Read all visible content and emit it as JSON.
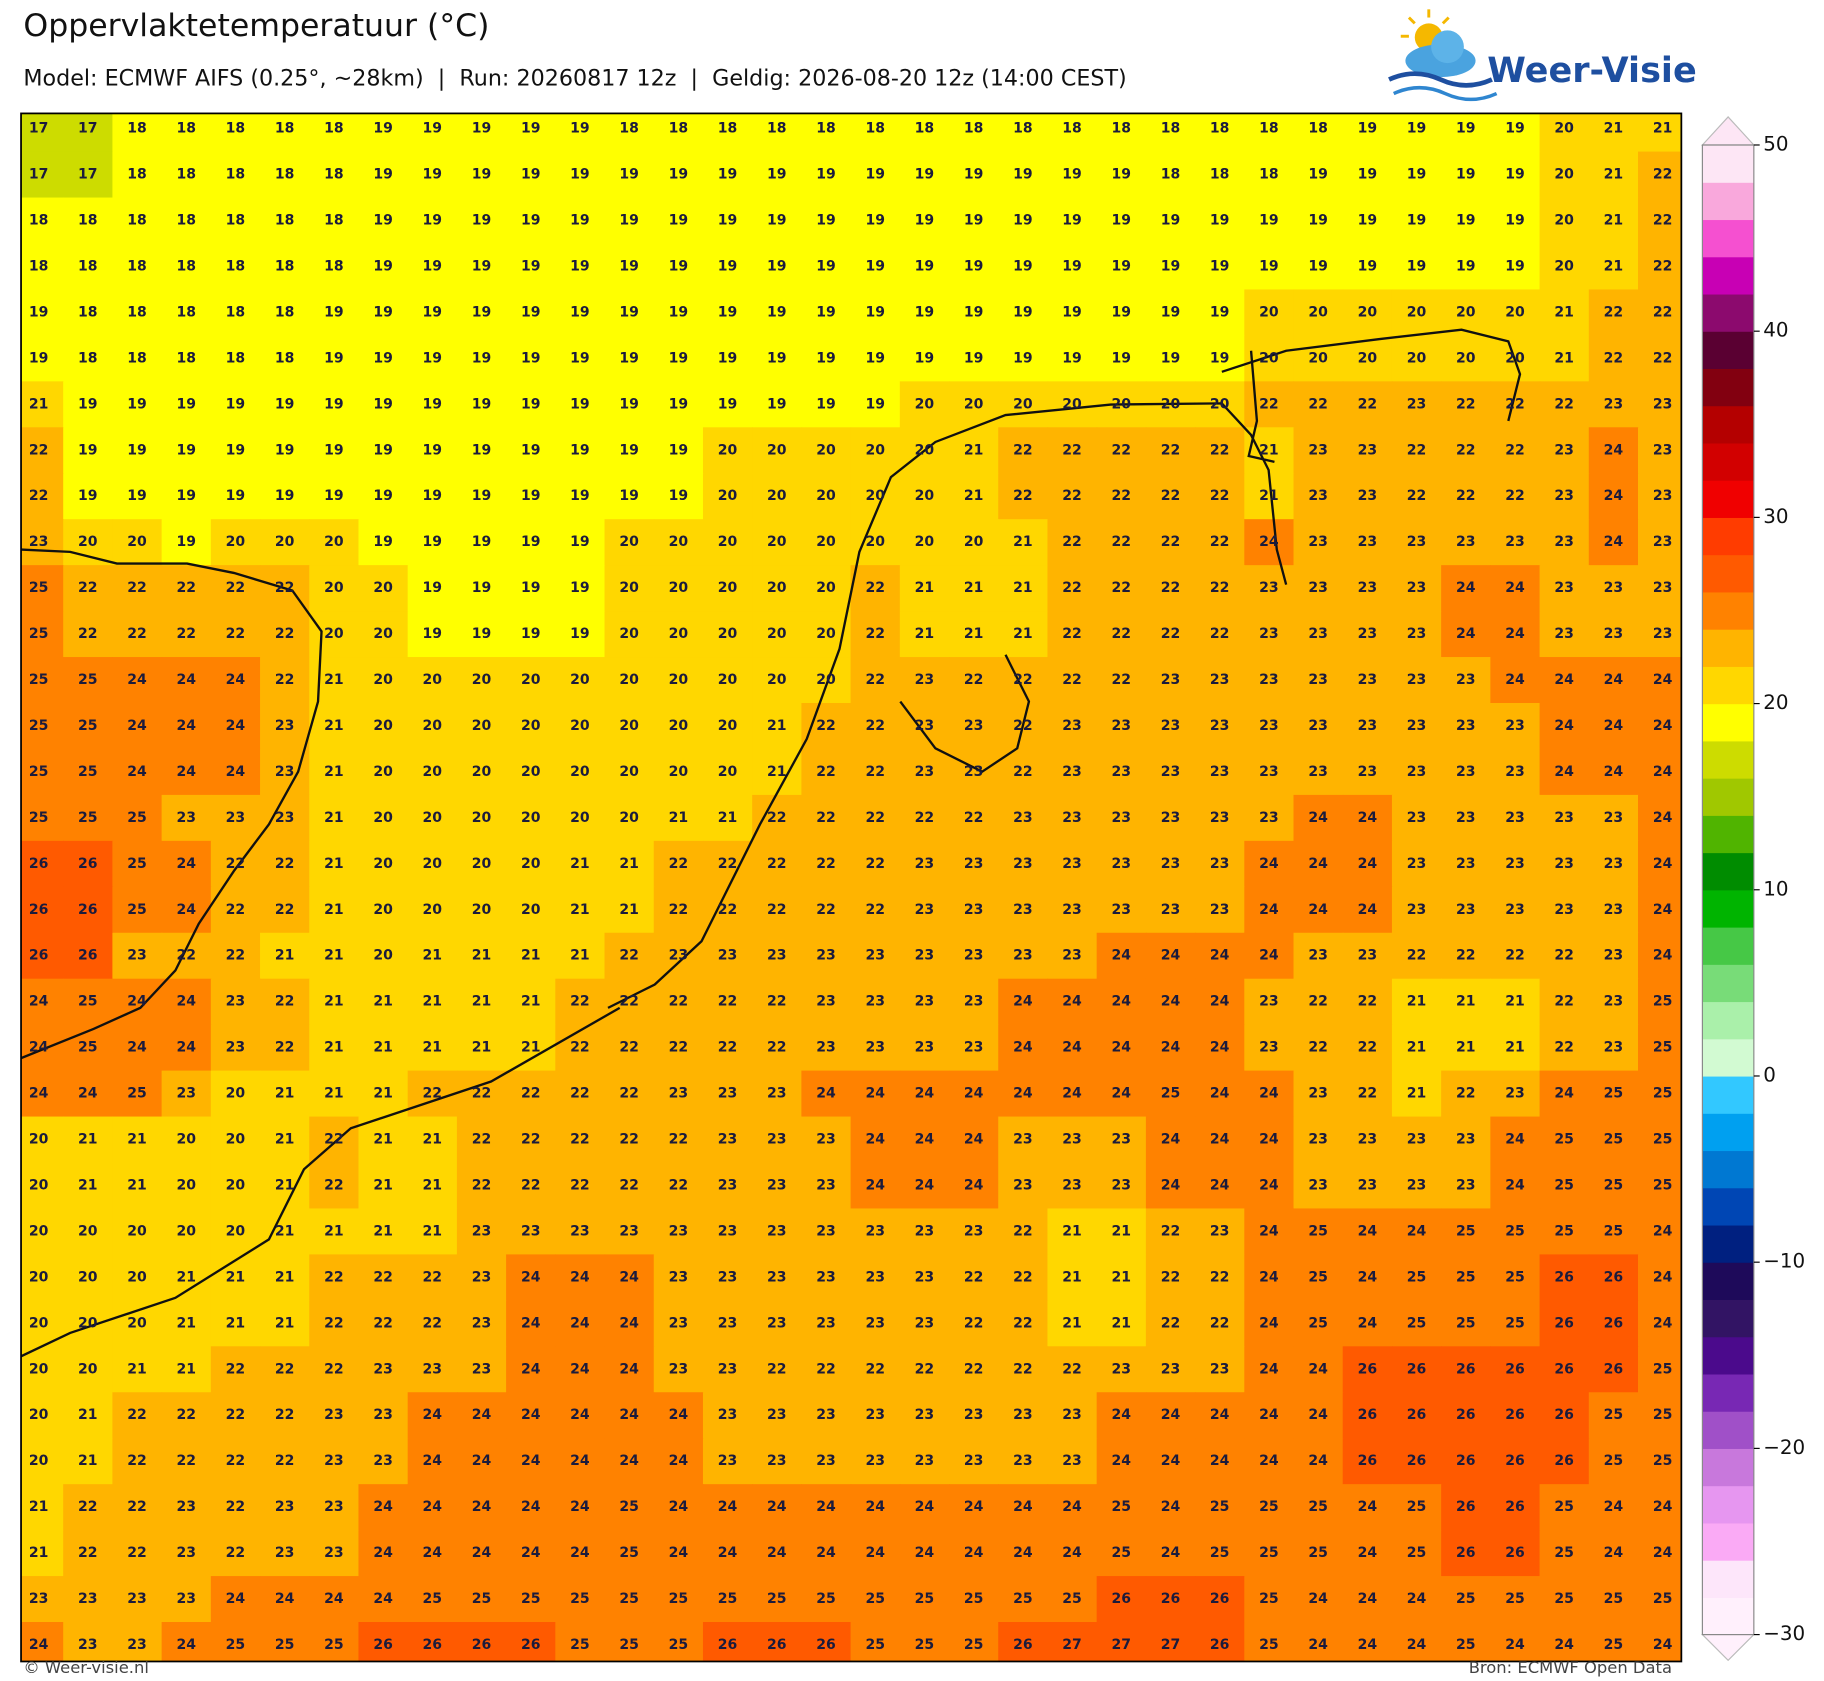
{
  "header": {
    "title": "Oppervlaktetemperatuur (°C)",
    "subtitle": "Model: ECMWF AIFS (0.25°, ~28km)  |  Run: 20260817 12z  |  Geldig: 2026-08-20 12z (14:00 CEST)"
  },
  "logo": "Weer-Visie",
  "grid": {
    "rows": [
      [
        17,
        17,
        18,
        18,
        18,
        18,
        18,
        19,
        19,
        19,
        19,
        19,
        18,
        18,
        18,
        18,
        18,
        18,
        18,
        18,
        18,
        18,
        18,
        18,
        18,
        18,
        18,
        19,
        19,
        19,
        19,
        20,
        21,
        21
      ],
      [
        17,
        17,
        18,
        18,
        18,
        18,
        18,
        19,
        19,
        19,
        19,
        19,
        19,
        19,
        19,
        19,
        19,
        19,
        19,
        19,
        19,
        19,
        19,
        18,
        18,
        18,
        19,
        19,
        19,
        19,
        19,
        20,
        21,
        22
      ],
      [
        18,
        18,
        18,
        18,
        18,
        18,
        18,
        19,
        19,
        19,
        19,
        19,
        19,
        19,
        19,
        19,
        19,
        19,
        19,
        19,
        19,
        19,
        19,
        19,
        19,
        19,
        19,
        19,
        19,
        19,
        19,
        20,
        21,
        22
      ],
      [
        18,
        18,
        18,
        18,
        18,
        18,
        18,
        19,
        19,
        19,
        19,
        19,
        19,
        19,
        19,
        19,
        19,
        19,
        19,
        19,
        19,
        19,
        19,
        19,
        19,
        19,
        19,
        19,
        19,
        19,
        19,
        20,
        21,
        22
      ],
      [
        19,
        18,
        18,
        18,
        18,
        18,
        19,
        19,
        19,
        19,
        19,
        19,
        19,
        19,
        19,
        19,
        19,
        19,
        19,
        19,
        19,
        19,
        19,
        19,
        19,
        20,
        20,
        20,
        20,
        20,
        20,
        21,
        22,
        22
      ],
      [
        19,
        18,
        18,
        18,
        18,
        18,
        19,
        19,
        19,
        19,
        19,
        19,
        19,
        19,
        19,
        19,
        19,
        19,
        19,
        19,
        19,
        19,
        19,
        19,
        19,
        20,
        20,
        20,
        20,
        20,
        20,
        21,
        22,
        22
      ],
      [
        21,
        19,
        19,
        19,
        19,
        19,
        19,
        19,
        19,
        19,
        19,
        19,
        19,
        19,
        19,
        19,
        19,
        19,
        20,
        20,
        20,
        20,
        20,
        20,
        20,
        22,
        22,
        22,
        23,
        22,
        22,
        22,
        23,
        23
      ],
      [
        22,
        19,
        19,
        19,
        19,
        19,
        19,
        19,
        19,
        19,
        19,
        19,
        19,
        19,
        20,
        20,
        20,
        20,
        20,
        21,
        22,
        22,
        22,
        22,
        22,
        21,
        23,
        23,
        22,
        22,
        22,
        23,
        24,
        23
      ],
      [
        22,
        19,
        19,
        19,
        19,
        19,
        19,
        19,
        19,
        19,
        19,
        19,
        19,
        19,
        20,
        20,
        20,
        20,
        20,
        21,
        22,
        22,
        22,
        22,
        22,
        21,
        23,
        23,
        22,
        22,
        22,
        23,
        24,
        23
      ],
      [
        23,
        20,
        20,
        19,
        20,
        20,
        20,
        19,
        19,
        19,
        19,
        19,
        20,
        20,
        20,
        20,
        20,
        20,
        20,
        20,
        21,
        22,
        22,
        22,
        22,
        24,
        23,
        23,
        23,
        23,
        23,
        23,
        24,
        23
      ],
      [
        25,
        22,
        22,
        22,
        22,
        22,
        20,
        20,
        19,
        19,
        19,
        19,
        20,
        20,
        20,
        20,
        20,
        22,
        21,
        21,
        21,
        22,
        22,
        22,
        22,
        23,
        23,
        23,
        23,
        24,
        24,
        23,
        23,
        23
      ],
      [
        25,
        22,
        22,
        22,
        22,
        22,
        20,
        20,
        19,
        19,
        19,
        19,
        20,
        20,
        20,
        20,
        20,
        22,
        21,
        21,
        21,
        22,
        22,
        22,
        22,
        23,
        23,
        23,
        23,
        24,
        24,
        23,
        23,
        23
      ],
      [
        25,
        25,
        24,
        24,
        24,
        22,
        21,
        20,
        20,
        20,
        20,
        20,
        20,
        20,
        20,
        20,
        20,
        22,
        23,
        22,
        22,
        22,
        22,
        23,
        23,
        23,
        23,
        23,
        23,
        23,
        24,
        24,
        24,
        24
      ],
      [
        25,
        25,
        24,
        24,
        24,
        23,
        21,
        20,
        20,
        20,
        20,
        20,
        20,
        20,
        20,
        21,
        22,
        22,
        23,
        23,
        22,
        23,
        23,
        23,
        23,
        23,
        23,
        23,
        23,
        23,
        23,
        24,
        24,
        24
      ],
      [
        25,
        25,
        24,
        24,
        24,
        23,
        21,
        20,
        20,
        20,
        20,
        20,
        20,
        20,
        20,
        21,
        22,
        22,
        23,
        23,
        22,
        23,
        23,
        23,
        23,
        23,
        23,
        23,
        23,
        23,
        23,
        24,
        24,
        24
      ],
      [
        25,
        25,
        25,
        23,
        23,
        23,
        21,
        20,
        20,
        20,
        20,
        20,
        20,
        21,
        21,
        22,
        22,
        22,
        22,
        22,
        23,
        23,
        23,
        23,
        23,
        23,
        24,
        24,
        23,
        23,
        23,
        23,
        23,
        24
      ],
      [
        26,
        26,
        25,
        24,
        22,
        22,
        21,
        20,
        20,
        20,
        20,
        21,
        21,
        22,
        22,
        22,
        22,
        22,
        23,
        23,
        23,
        23,
        23,
        23,
        23,
        24,
        24,
        24,
        23,
        23,
        23,
        23,
        23,
        24
      ],
      [
        26,
        26,
        25,
        24,
        22,
        22,
        21,
        20,
        20,
        20,
        20,
        21,
        21,
        22,
        22,
        22,
        22,
        22,
        23,
        23,
        23,
        23,
        23,
        23,
        23,
        24,
        24,
        24,
        23,
        23,
        23,
        23,
        23,
        24
      ],
      [
        26,
        26,
        23,
        22,
        22,
        21,
        21,
        20,
        21,
        21,
        21,
        21,
        22,
        23,
        23,
        23,
        23,
        23,
        23,
        23,
        23,
        23,
        24,
        24,
        24,
        24,
        23,
        23,
        22,
        22,
        22,
        22,
        23,
        24
      ],
      [
        24,
        25,
        24,
        24,
        23,
        22,
        21,
        21,
        21,
        21,
        21,
        22,
        22,
        22,
        22,
        22,
        23,
        23,
        23,
        23,
        24,
        24,
        24,
        24,
        24,
        23,
        22,
        22,
        21,
        21,
        21,
        22,
        23,
        25
      ],
      [
        24,
        25,
        24,
        24,
        23,
        22,
        21,
        21,
        21,
        21,
        21,
        22,
        22,
        22,
        22,
        22,
        23,
        23,
        23,
        23,
        24,
        24,
        24,
        24,
        24,
        23,
        22,
        22,
        21,
        21,
        21,
        22,
        23,
        25
      ],
      [
        24,
        24,
        25,
        23,
        20,
        21,
        21,
        21,
        22,
        22,
        22,
        22,
        22,
        23,
        23,
        23,
        24,
        24,
        24,
        24,
        24,
        24,
        24,
        25,
        24,
        24,
        23,
        22,
        21,
        22,
        23,
        24,
        25,
        25
      ],
      [
        20,
        21,
        21,
        20,
        20,
        21,
        22,
        21,
        21,
        22,
        22,
        22,
        22,
        22,
        23,
        23,
        23,
        24,
        24,
        24,
        23,
        23,
        23,
        24,
        24,
        24,
        23,
        23,
        23,
        23,
        24,
        25,
        25,
        25
      ],
      [
        20,
        21,
        21,
        20,
        20,
        21,
        22,
        21,
        21,
        22,
        22,
        22,
        22,
        22,
        23,
        23,
        23,
        24,
        24,
        24,
        23,
        23,
        23,
        24,
        24,
        24,
        23,
        23,
        23,
        23,
        24,
        25,
        25,
        25
      ],
      [
        20,
        20,
        20,
        20,
        20,
        21,
        21,
        21,
        21,
        23,
        23,
        23,
        23,
        23,
        23,
        23,
        23,
        23,
        23,
        23,
        22,
        21,
        21,
        22,
        23,
        24,
        25,
        24,
        24,
        25,
        25,
        25,
        25,
        24
      ],
      [
        20,
        20,
        20,
        21,
        21,
        21,
        22,
        22,
        22,
        23,
        24,
        24,
        24,
        23,
        23,
        23,
        23,
        23,
        23,
        22,
        22,
        21,
        21,
        22,
        22,
        24,
        25,
        24,
        25,
        25,
        25,
        26,
        26,
        24
      ],
      [
        20,
        20,
        20,
        21,
        21,
        21,
        22,
        22,
        22,
        23,
        24,
        24,
        24,
        23,
        23,
        23,
        23,
        23,
        23,
        22,
        22,
        21,
        21,
        22,
        22,
        24,
        25,
        24,
        25,
        25,
        25,
        26,
        26,
        24
      ],
      [
        20,
        20,
        21,
        21,
        22,
        22,
        22,
        23,
        23,
        23,
        24,
        24,
        24,
        23,
        23,
        22,
        22,
        22,
        22,
        22,
        22,
        22,
        23,
        23,
        23,
        24,
        24,
        26,
        26,
        26,
        26,
        26,
        26,
        25
      ],
      [
        20,
        21,
        22,
        22,
        22,
        22,
        23,
        23,
        24,
        24,
        24,
        24,
        24,
        24,
        23,
        23,
        23,
        23,
        23,
        23,
        23,
        23,
        24,
        24,
        24,
        24,
        24,
        26,
        26,
        26,
        26,
        26,
        25,
        25
      ],
      [
        20,
        21,
        22,
        22,
        22,
        22,
        23,
        23,
        24,
        24,
        24,
        24,
        24,
        24,
        23,
        23,
        23,
        23,
        23,
        23,
        23,
        23,
        24,
        24,
        24,
        24,
        24,
        26,
        26,
        26,
        26,
        26,
        25,
        25
      ],
      [
        21,
        22,
        22,
        23,
        22,
        23,
        23,
        24,
        24,
        24,
        24,
        24,
        25,
        24,
        24,
        24,
        24,
        24,
        24,
        24,
        24,
        24,
        25,
        24,
        25,
        25,
        25,
        24,
        25,
        26,
        26,
        25,
        24,
        24
      ],
      [
        21,
        22,
        22,
        23,
        22,
        23,
        23,
        24,
        24,
        24,
        24,
        24,
        25,
        24,
        24,
        24,
        24,
        24,
        24,
        24,
        24,
        24,
        25,
        24,
        25,
        25,
        25,
        24,
        25,
        26,
        26,
        25,
        24,
        24
      ],
      [
        23,
        23,
        23,
        23,
        24,
        24,
        24,
        24,
        25,
        25,
        25,
        25,
        25,
        25,
        25,
        25,
        25,
        25,
        25,
        25,
        25,
        25,
        26,
        26,
        26,
        25,
        24,
        24,
        24,
        25,
        25,
        25,
        25,
        25
      ],
      [
        24,
        23,
        23,
        24,
        25,
        25,
        25,
        26,
        26,
        26,
        26,
        25,
        25,
        25,
        26,
        26,
        26,
        25,
        25,
        25,
        26,
        27,
        27,
        27,
        26,
        25,
        24,
        24,
        24,
        25,
        24,
        24,
        25,
        24
      ]
    ]
  },
  "colorbar": {
    "lim": [
      -30,
      50
    ],
    "ticks": [
      {
        "value": -30,
        "label": "−30"
      },
      {
        "value": -20,
        "label": "−20"
      },
      {
        "value": -10,
        "label": "−10"
      },
      0,
      10,
      20,
      30,
      40,
      50
    ],
    "colors": [
      "#fff0fc",
      "#fde6fa",
      "#faaaf5",
      "#e696f0",
      "#c878dc",
      "#a050c8",
      "#7828b4",
      "#4b0a8c",
      "#321464",
      "#1e0a5a",
      "#002080",
      "#0046b4",
      "#0078d2",
      "#00a0f0",
      "#32c8ff",
      "#d2fad2",
      "#aaf0aa",
      "#78dc78",
      "#46c846",
      "#00b400",
      "#008c00",
      "#50b400",
      "#a0c800",
      "#cddc00",
      "#ffff00",
      "#ffd700",
      "#ffb400",
      "#ff8200",
      "#ff5a00",
      "#ff3c00",
      "#f00000",
      "#d20000",
      "#b40000",
      "#820010",
      "#5a0032",
      "#8c0a6e",
      "#c800b4",
      "#f550d0",
      "#f9a8dc",
      "#fde6f5"
    ]
  },
  "footer": {
    "left": "© Weer-visie.nl",
    "right": "Bron: ECMWF Open Data"
  }
}
